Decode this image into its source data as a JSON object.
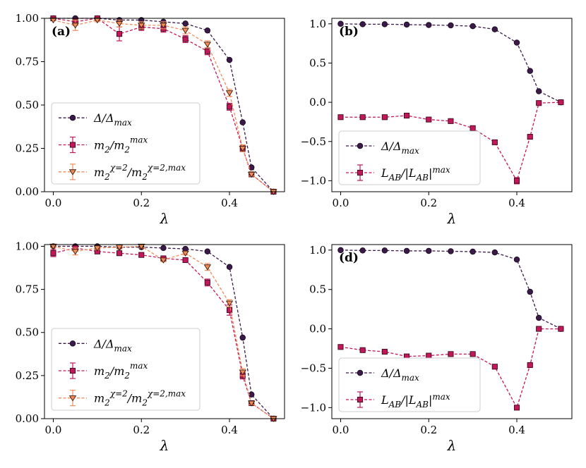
{
  "chart_data": [
    {
      "type": "line",
      "panel_label": "(a)",
      "xlabel": "λ",
      "ylabel": "",
      "xlim": [
        -0.02,
        0.525
      ],
      "ylim": [
        0.0,
        1.0
      ],
      "xticks": [
        0.0,
        0.2,
        0.4
      ],
      "xtick_labels": [
        "0.0",
        "0.2",
        "0.4"
      ],
      "yticks": [
        0.0,
        0.25,
        0.5,
        0.75,
        1.0
      ],
      "ytick_labels": [
        "0.00",
        "0.25",
        "0.50",
        "0.75",
        "1.00"
      ],
      "legend_position": "lower-left",
      "series": [
        {
          "name": "Δ/Δmax",
          "legend_label": "Δ/Δ_max",
          "marker": "circle",
          "color": "#3b1a4a",
          "x": [
            0.0,
            0.05,
            0.1,
            0.15,
            0.2,
            0.25,
            0.3,
            0.35,
            0.4,
            0.43,
            0.45,
            0.5
          ],
          "y": [
            1.0,
            1.0,
            1.0,
            0.99,
            0.99,
            0.98,
            0.97,
            0.93,
            0.76,
            0.4,
            0.14,
            0.0
          ]
        },
        {
          "name": "m2/m2max",
          "legend_label": "m_2/m_2^max",
          "marker": "square",
          "color": "#c2185b",
          "x": [
            0.0,
            0.05,
            0.1,
            0.15,
            0.2,
            0.25,
            0.3,
            0.35,
            0.4,
            0.43,
            0.45,
            0.5
          ],
          "y": [
            1.0,
            0.98,
            1.0,
            0.91,
            0.95,
            0.94,
            0.88,
            0.81,
            0.49,
            0.25,
            0.1,
            0.0
          ],
          "err": [
            0.0,
            0.02,
            0.01,
            0.04,
            0.02,
            0.02,
            0.02,
            0.02,
            0.02,
            0.02,
            0.01,
            0.0
          ]
        },
        {
          "name": "m2χ=2/m2χ=2,max",
          "legend_label": "m_2^{χ=2}/m_2^{χ=2,max}",
          "marker": "triangle-down",
          "color": "#f08c5a",
          "x": [
            0.0,
            0.05,
            0.1,
            0.15,
            0.2,
            0.25,
            0.3,
            0.35,
            0.4,
            0.43,
            0.45,
            0.5
          ],
          "y": [
            0.99,
            0.96,
            0.99,
            0.97,
            0.96,
            0.96,
            0.93,
            0.85,
            0.57,
            0.25,
            0.1,
            0.0
          ],
          "err": [
            0.0,
            0.03,
            0.01,
            0.02,
            0.02,
            0.02,
            0.02,
            0.02,
            0.02,
            0.02,
            0.01,
            0.0
          ]
        }
      ]
    },
    {
      "type": "line",
      "panel_label": "(b)",
      "xlabel": "λ",
      "ylabel": "",
      "xlim": [
        -0.02,
        0.525
      ],
      "ylim": [
        -1.14,
        1.07
      ],
      "xticks": [
        0.0,
        0.2,
        0.4
      ],
      "xtick_labels": [
        "0.0",
        "0.2",
        "0.4"
      ],
      "yticks": [
        -1.0,
        -0.5,
        0.0,
        0.5,
        1.0
      ],
      "ytick_labels": [
        "−1.0",
        "−0.5",
        "0.0",
        "0.5",
        "1.0"
      ],
      "legend_position": "lower-left",
      "series": [
        {
          "name": "Δ/Δmax",
          "legend_label": "Δ/Δ_max",
          "marker": "circle",
          "color": "#3b1a4a",
          "x": [
            0.0,
            0.05,
            0.1,
            0.15,
            0.2,
            0.25,
            0.3,
            0.35,
            0.4,
            0.43,
            0.45,
            0.5
          ],
          "y": [
            1.0,
            0.995,
            0.995,
            0.99,
            0.985,
            0.98,
            0.97,
            0.93,
            0.76,
            0.4,
            0.14,
            0.0
          ]
        },
        {
          "name": "LAB/|LAB|max",
          "legend_label": "L_AB/|L_AB|^max",
          "marker": "square",
          "color": "#c2185b",
          "x": [
            0.0,
            0.05,
            0.1,
            0.15,
            0.2,
            0.25,
            0.3,
            0.35,
            0.4,
            0.43,
            0.45,
            0.5
          ],
          "y": [
            -0.19,
            -0.19,
            -0.19,
            -0.17,
            -0.22,
            -0.24,
            -0.33,
            -0.51,
            -1.0,
            -0.44,
            -0.01,
            0.0
          ],
          "err": [
            0.02,
            0.02,
            0.02,
            0.02,
            0.02,
            0.02,
            0.02,
            0.02,
            0.04,
            0.02,
            0.01,
            0.01
          ]
        }
      ]
    },
    {
      "type": "line",
      "panel_label": "",
      "xlabel": "λ",
      "ylabel": "",
      "xlim": [
        -0.02,
        0.525
      ],
      "ylim": [
        0.0,
        1.01
      ],
      "xticks": [
        0.0,
        0.2,
        0.4
      ],
      "xtick_labels": [
        "0.0",
        "0.2",
        "0.4"
      ],
      "yticks": [
        0.0,
        0.25,
        0.5,
        0.75,
        1.0
      ],
      "ytick_labels": [
        "0.00",
        "0.25",
        "0.50",
        "0.75",
        "1.00"
      ],
      "legend_position": "lower-left",
      "series": [
        {
          "name": "Δ/Δmax",
          "legend_label": "Δ/Δ_max",
          "marker": "circle",
          "color": "#3b1a4a",
          "x": [
            0.0,
            0.05,
            0.1,
            0.15,
            0.2,
            0.25,
            0.3,
            0.35,
            0.4,
            0.43,
            0.45,
            0.5
          ],
          "y": [
            1.0,
            1.0,
            1.0,
            0.995,
            0.995,
            0.99,
            0.985,
            0.97,
            0.88,
            0.47,
            0.14,
            0.0
          ]
        },
        {
          "name": "m2/m2max",
          "legend_label": "m_2/m_2^max",
          "marker": "square",
          "color": "#c2185b",
          "x": [
            0.0,
            0.05,
            0.1,
            0.15,
            0.2,
            0.25,
            0.3,
            0.35,
            0.4,
            0.43,
            0.45,
            0.5
          ],
          "y": [
            0.96,
            0.99,
            0.97,
            0.96,
            0.95,
            0.93,
            0.92,
            0.79,
            0.63,
            0.25,
            0.09,
            0.0
          ],
          "err": [
            0.02,
            0.01,
            0.01,
            0.01,
            0.01,
            0.01,
            0.01,
            0.02,
            0.03,
            0.02,
            0.01,
            0.0
          ]
        },
        {
          "name": "m2χ=2/m2χ=2,max",
          "legend_label": "m_2^{χ=2}/m_2^{χ=2,max}",
          "marker": "triangle-down",
          "color": "#f08c5a",
          "x": [
            0.0,
            0.05,
            0.1,
            0.15,
            0.2,
            0.25,
            0.3,
            0.35,
            0.4,
            0.43,
            0.45,
            0.5
          ],
          "y": [
            1.0,
            0.97,
            0.99,
            0.995,
            1.0,
            0.92,
            0.96,
            0.88,
            0.67,
            0.27,
            0.09,
            0.0
          ],
          "err": [
            0.01,
            0.02,
            0.01,
            0.01,
            0.01,
            0.01,
            0.01,
            0.02,
            0.02,
            0.02,
            0.01,
            0.0
          ]
        }
      ]
    },
    {
      "type": "line",
      "panel_label": "(d)",
      "xlabel": "λ",
      "ylabel": "",
      "xlim": [
        -0.02,
        0.525
      ],
      "ylim": [
        -1.14,
        1.07
      ],
      "xticks": [
        0.0,
        0.2,
        0.4
      ],
      "xtick_labels": [
        "0.0",
        "0.2",
        "0.4"
      ],
      "yticks": [
        -1.0,
        -0.5,
        0.0,
        0.5,
        1.0
      ],
      "ytick_labels": [
        "−1.0",
        "−0.5",
        "0.0",
        "0.5",
        "1.0"
      ],
      "legend_position": "lower-left",
      "series": [
        {
          "name": "Δ/Δmax",
          "legend_label": "Δ/Δ_max",
          "marker": "circle",
          "color": "#3b1a4a",
          "x": [
            0.0,
            0.05,
            0.1,
            0.15,
            0.2,
            0.25,
            0.3,
            0.35,
            0.4,
            0.43,
            0.45,
            0.5
          ],
          "y": [
            1.0,
            0.995,
            0.995,
            0.99,
            0.99,
            0.985,
            0.98,
            0.97,
            0.88,
            0.47,
            0.14,
            0.0
          ]
        },
        {
          "name": "LAB/|LAB|max",
          "legend_label": "L_AB/|L_AB|^max",
          "marker": "square",
          "color": "#c2185b",
          "x": [
            0.0,
            0.05,
            0.1,
            0.15,
            0.2,
            0.25,
            0.3,
            0.35,
            0.4,
            0.43,
            0.45,
            0.5
          ],
          "y": [
            -0.23,
            -0.27,
            -0.29,
            -0.35,
            -0.34,
            -0.32,
            -0.32,
            -0.48,
            -1.0,
            -0.46,
            0.0,
            0.0
          ],
          "err": [
            0.01,
            0.01,
            0.01,
            0.01,
            0.01,
            0.01,
            0.01,
            0.01,
            0.02,
            0.01,
            0.01,
            0.01
          ]
        }
      ]
    }
  ]
}
